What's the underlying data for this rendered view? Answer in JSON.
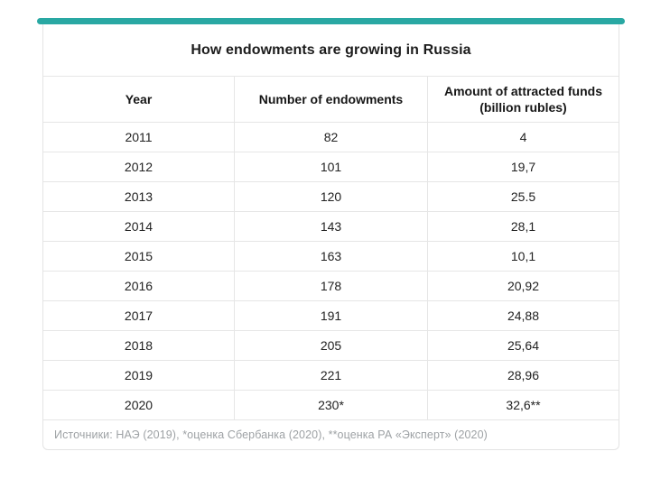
{
  "card": {
    "title": "How endowments are growing in Russia",
    "accent_color": "#29a8a3",
    "border_color": "#e4e4e4",
    "footnote": "Источники: НАЭ (2019), *оценка Сбербанка (2020), **оценка РА «Эксперт» (2020)"
  },
  "table": {
    "display_headers": [
      "Year",
      "Number of endowments",
      "Amount of attracted funds\n(billion rubles)"
    ]
  },
  "chart_data": {
    "type": "table",
    "title": "How endowments are growing in Russia",
    "columns": [
      "Year",
      "Number of endowments",
      "Amount of attracted funds (billion rubles)"
    ],
    "rows": [
      [
        "2011",
        "82",
        "4"
      ],
      [
        "2012",
        "101",
        "19,7"
      ],
      [
        "2013",
        "120",
        "25.5"
      ],
      [
        "2014",
        "143",
        "28,1"
      ],
      [
        "2015",
        "163",
        "10,1"
      ],
      [
        "2016",
        "178",
        "20,92"
      ],
      [
        "2017",
        "191",
        "24,88"
      ],
      [
        "2018",
        "205",
        "25,64"
      ],
      [
        "2019",
        "221",
        "28,96"
      ],
      [
        "2020",
        "230*",
        "32,6**"
      ]
    ],
    "footnote": "Источники: НАЭ (2019), *оценка Сбербанка (2020), **оценка РА «Эксперт» (2020)",
    "layout": {
      "grid": "horizontal-and-vertical-dividers",
      "text_align": "center"
    }
  }
}
